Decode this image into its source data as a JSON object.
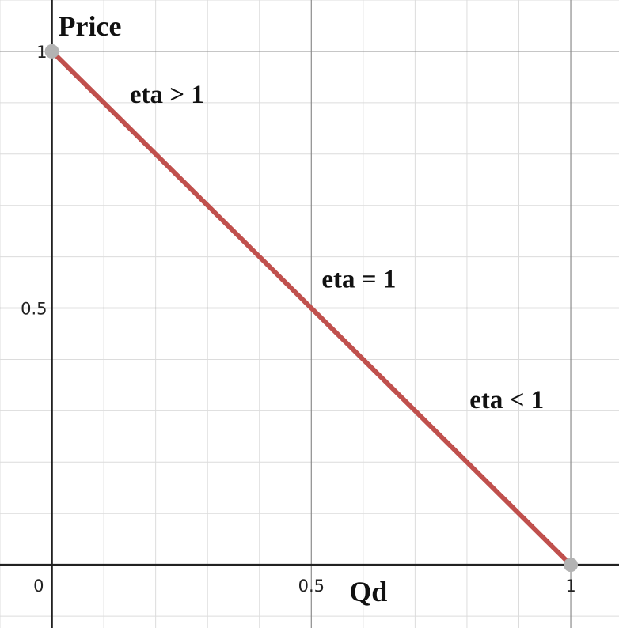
{
  "chart_data": {
    "type": "line",
    "xlabel": "Qd",
    "ylabel": "Price",
    "xlim": [
      -0.1,
      1.093
    ],
    "ylim": [
      -0.123,
      1.1
    ],
    "x_ticks": [
      {
        "value": 0.5,
        "label": "0.5"
      },
      {
        "value": 1,
        "label": "1"
      }
    ],
    "y_ticks": [
      {
        "value": 0.5,
        "label": "0.5"
      },
      {
        "value": 1,
        "label": "1"
      }
    ],
    "origin_label": "0",
    "grid": true,
    "major_grid_step": 0.5,
    "minor_grid_step": 0.1,
    "series": [
      {
        "x": [
          0,
          1
        ],
        "y": [
          1,
          0
        ],
        "color": "#c0504d"
      }
    ],
    "points": [
      {
        "x": 0,
        "y": 1,
        "color": "#b3b3b3"
      },
      {
        "x": 1,
        "y": 0,
        "color": "#b3b3b3"
      }
    ],
    "annotations": [
      {
        "text": "eta > 1",
        "x": 0.15,
        "y": 0.9
      },
      {
        "text": "eta = 1",
        "x": 0.52,
        "y": 0.54
      },
      {
        "text": "eta < 1",
        "x": 0.805,
        "y": 0.305
      }
    ]
  }
}
